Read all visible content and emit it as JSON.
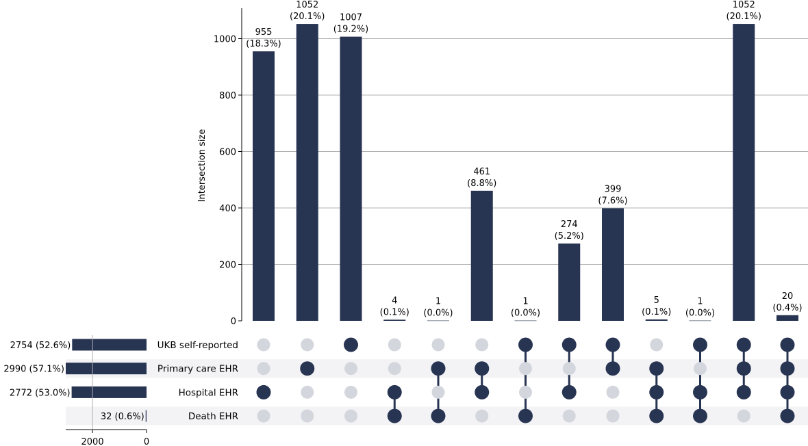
{
  "chart_data": {
    "type": "upset",
    "ylabel": "Intersection size",
    "ylim": [
      0,
      1100
    ],
    "yticks": [
      0,
      200,
      400,
      600,
      800,
      1000
    ],
    "grid": true,
    "sets": [
      {
        "name": "UKB self-reported",
        "size": 2754,
        "label": "2754 (52.6%)"
      },
      {
        "name": "Primary care EHR",
        "size": 2990,
        "label": "2990 (57.1%)"
      },
      {
        "name": "Hospital EHR",
        "size": 2772,
        "label": "2772 (53.0%)"
      },
      {
        "name": "Death EHR",
        "size": 32,
        "label": "32 (0.6%)"
      }
    ],
    "set_size_ticks": [
      2000,
      0
    ],
    "intersections": [
      {
        "value": 955,
        "count_label": "955",
        "pct_label": "(18.3%)",
        "members": [
          false,
          false,
          true,
          false
        ]
      },
      {
        "value": 1052,
        "count_label": "1052",
        "pct_label": "(20.1%)",
        "members": [
          false,
          true,
          false,
          false
        ]
      },
      {
        "value": 1007,
        "count_label": "1007",
        "pct_label": "(19.2%)",
        "members": [
          true,
          false,
          false,
          false
        ]
      },
      {
        "value": 4,
        "count_label": "4",
        "pct_label": "(0.1%)",
        "members": [
          false,
          false,
          true,
          true
        ]
      },
      {
        "value": 1,
        "count_label": "1",
        "pct_label": "(0.0%)",
        "members": [
          false,
          true,
          false,
          true
        ]
      },
      {
        "value": 461,
        "count_label": "461",
        "pct_label": "(8.8%)",
        "members": [
          false,
          true,
          true,
          false
        ]
      },
      {
        "value": 1,
        "count_label": "1",
        "pct_label": "(0.0%)",
        "members": [
          true,
          false,
          false,
          true
        ]
      },
      {
        "value": 274,
        "count_label": "274",
        "pct_label": "(5.2%)",
        "members": [
          true,
          false,
          true,
          false
        ]
      },
      {
        "value": 399,
        "count_label": "399",
        "pct_label": "(7.6%)",
        "members": [
          true,
          true,
          false,
          false
        ]
      },
      {
        "value": 5,
        "count_label": "5",
        "pct_label": "(0.1%)",
        "members": [
          false,
          true,
          true,
          true
        ]
      },
      {
        "value": 1,
        "count_label": "1",
        "pct_label": "(0.0%)",
        "members": [
          true,
          false,
          true,
          true
        ]
      },
      {
        "value": 1052,
        "count_label": "1052",
        "pct_label": "(20.1%)",
        "members": [
          true,
          true,
          true,
          false
        ]
      },
      {
        "value": 20,
        "count_label": "20",
        "pct_label": "(0.4%)",
        "members": [
          true,
          true,
          true,
          true
        ]
      }
    ],
    "colors": {
      "bar": "#283552",
      "dot_active": "#283552",
      "dot_inactive": "#d3d6dc",
      "row_shade": "#f3f3f6",
      "grid": "#b0b0b0"
    }
  }
}
